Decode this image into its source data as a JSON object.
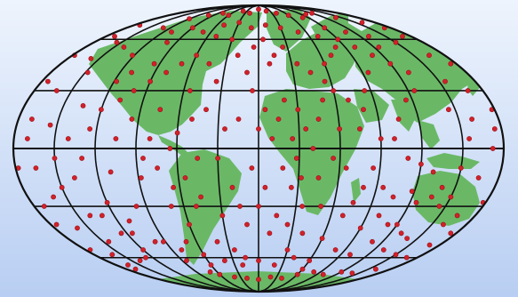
{
  "map": {
    "projection": "Mollweide",
    "colors": {
      "background_top": "#eef4fd",
      "background_bottom": "#b8cef2",
      "land": "#6ab866",
      "grid": "#111111",
      "point": "#d2212a",
      "point_edge": "#9a1018"
    },
    "graticule": {
      "parallels_deg": [
        -60,
        -30,
        0,
        30,
        60
      ],
      "meridians_deg": [
        -180,
        -150,
        -120,
        -90,
        -60,
        -30,
        0,
        30,
        60,
        90,
        120,
        150,
        180
      ]
    },
    "points": [
      [
        -170,
        62
      ],
      [
        -158,
        48
      ],
      [
        -162,
        30
      ],
      [
        -140,
        55
      ],
      [
        -148,
        40
      ],
      [
        -135,
        22
      ],
      [
        -155,
        12
      ],
      [
        -170,
        5
      ],
      [
        -165,
        -10
      ],
      [
        -150,
        -20
      ],
      [
        -172,
        -30
      ],
      [
        -160,
        -42
      ],
      [
        -145,
        -50
      ],
      [
        -175,
        -55
      ],
      [
        -165,
        -65
      ],
      [
        -140,
        -35
      ],
      [
        -130,
        -5
      ],
      [
        -125,
        10
      ],
      [
        -138,
        -15
      ],
      [
        -120,
        -28
      ],
      [
        -115,
        -45
      ],
      [
        -128,
        -60
      ],
      [
        -110,
        -12
      ],
      [
        -105,
        5
      ],
      [
        -118,
        35
      ],
      [
        -122,
        50
      ],
      [
        -100,
        58
      ],
      [
        -95,
        45
      ],
      [
        -108,
        25
      ],
      [
        -98,
        -30
      ],
      [
        -92,
        -50
      ],
      [
        -88,
        -15
      ],
      [
        -85,
        -62
      ],
      [
        -70,
        -70
      ],
      [
        -60,
        -72
      ],
      [
        -40,
        -74
      ],
      [
        -20,
        -75
      ],
      [
        0,
        -76
      ],
      [
        20,
        -74
      ],
      [
        40,
        -75
      ],
      [
        60,
        -72
      ],
      [
        80,
        -70
      ],
      [
        100,
        -72
      ],
      [
        120,
        -70
      ],
      [
        140,
        -71
      ],
      [
        160,
        -68
      ],
      [
        -120,
        75
      ],
      [
        -100,
        78
      ],
      [
        -80,
        80
      ],
      [
        -60,
        78
      ],
      [
        -40,
        82
      ],
      [
        -20,
        80
      ],
      [
        0,
        84
      ],
      [
        20,
        82
      ],
      [
        40,
        80
      ],
      [
        60,
        78
      ],
      [
        80,
        76
      ],
      [
        100,
        79
      ],
      [
        120,
        80
      ],
      [
        140,
        76
      ],
      [
        160,
        72
      ],
      [
        170,
        62
      ],
      [
        175,
        45
      ],
      [
        168,
        30
      ],
      [
        160,
        15
      ],
      [
        172,
        0
      ],
      [
        165,
        -15
      ],
      [
        178,
        -28
      ],
      [
        160,
        -40
      ],
      [
        170,
        -52
      ],
      [
        150,
        -58
      ],
      [
        140,
        -48
      ],
      [
        130,
        -55
      ],
      [
        110,
        -50
      ],
      [
        100,
        -35
      ],
      [
        90,
        -42
      ],
      [
        80,
        -20
      ],
      [
        70,
        -35
      ],
      [
        60,
        -48
      ],
      [
        50,
        -30
      ],
      [
        40,
        -45
      ],
      [
        30,
        -55
      ],
      [
        10,
        -45
      ],
      [
        0,
        -30
      ],
      [
        -10,
        -40
      ],
      [
        -20,
        -20
      ],
      [
        -30,
        -35
      ],
      [
        -40,
        -50
      ],
      [
        -25,
        -55
      ],
      [
        -15,
        -60
      ],
      [
        -30,
        -5
      ],
      [
        -25,
        10
      ],
      [
        -40,
        20
      ],
      [
        -35,
        35
      ],
      [
        -45,
        45
      ],
      [
        -20,
        50
      ],
      [
        -30,
        60
      ],
      [
        -50,
        62
      ],
      [
        -60,
        50
      ],
      [
        -55,
        30
      ],
      [
        -50,
        15
      ],
      [
        -60,
        8
      ],
      [
        -45,
        -5
      ],
      [
        10,
        5
      ],
      [
        0,
        10
      ],
      [
        5,
        20
      ],
      [
        15,
        15
      ],
      [
        20,
        25
      ],
      [
        30,
        20
      ],
      [
        35,
        10
      ],
      [
        25,
        5
      ],
      [
        28,
        -5
      ],
      [
        32,
        -15
      ],
      [
        25,
        -20
      ],
      [
        18,
        -10
      ],
      [
        40,
        0
      ],
      [
        45,
        15
      ],
      [
        50,
        25
      ],
      [
        55,
        35
      ],
      [
        60,
        45
      ],
      [
        70,
        50
      ],
      [
        80,
        55
      ],
      [
        90,
        60
      ],
      [
        100,
        55
      ],
      [
        110,
        50
      ],
      [
        120,
        45
      ],
      [
        130,
        40
      ],
      [
        125,
        30
      ],
      [
        115,
        25
      ],
      [
        105,
        15
      ],
      [
        100,
        5
      ],
      [
        110,
        -5
      ],
      [
        120,
        -8
      ],
      [
        130,
        -12
      ],
      [
        140,
        -20
      ],
      [
        150,
        -25
      ],
      [
        145,
        -30
      ],
      [
        135,
        -25
      ],
      [
        125,
        -28
      ],
      [
        118,
        -22
      ],
      [
        70,
        25
      ],
      [
        80,
        20
      ],
      [
        75,
        10
      ],
      [
        85,
        30
      ],
      [
        95,
        40
      ],
      [
        60,
        30
      ],
      [
        45,
        40
      ],
      [
        35,
        45
      ],
      [
        25,
        55
      ],
      [
        15,
        50
      ],
      [
        10,
        45
      ],
      [
        5,
        60
      ],
      [
        -5,
        55
      ],
      [
        -10,
        40
      ],
      [
        -5,
        30
      ],
      [
        -15,
        15
      ],
      [
        -70,
        45
      ],
      [
        -80,
        40
      ],
      [
        -90,
        35
      ],
      [
        -100,
        30
      ],
      [
        -110,
        40
      ],
      [
        -75,
        -10
      ],
      [
        -65,
        -20
      ],
      [
        -55,
        -15
      ],
      [
        -70,
        -30
      ],
      [
        -60,
        -40
      ],
      [
        -70,
        -50
      ],
      [
        -50,
        -30
      ],
      [
        -45,
        -25
      ],
      [
        -65,
        0
      ],
      [
        -80,
        5
      ],
      [
        -85,
        -5
      ],
      [
        -95,
        15
      ],
      [
        -75,
        20
      ],
      [
        -120,
        20
      ],
      [
        -140,
        5
      ],
      [
        -150,
        -5
      ],
      [
        -130,
        -35
      ],
      [
        -110,
        -38
      ],
      [
        -160,
        -25
      ],
      [
        -170,
        15
      ],
      [
        -175,
        35
      ],
      [
        -155,
        58
      ],
      [
        -130,
        68
      ],
      [
        -110,
        65
      ],
      [
        -90,
        68
      ],
      [
        -70,
        65
      ],
      [
        -50,
        70
      ],
      [
        -30,
        72
      ],
      [
        -10,
        68
      ],
      [
        10,
        70
      ],
      [
        30,
        68
      ],
      [
        50,
        65
      ],
      [
        70,
        62
      ],
      [
        90,
        68
      ],
      [
        110,
        65
      ],
      [
        130,
        62
      ],
      [
        150,
        58
      ],
      [
        165,
        50
      ],
      [
        155,
        35
      ],
      [
        145,
        20
      ],
      [
        155,
        5
      ],
      [
        150,
        -10
      ],
      [
        165,
        -35
      ],
      [
        175,
        -45
      ],
      [
        120,
        -40
      ],
      [
        100,
        -58
      ],
      [
        80,
        -55
      ],
      [
        60,
        -62
      ],
      [
        40,
        -60
      ],
      [
        20,
        -65
      ],
      [
        0,
        -62
      ],
      [
        -20,
        -65
      ],
      [
        -40,
        -62
      ],
      [
        -60,
        -58
      ],
      [
        -80,
        -55
      ],
      [
        -100,
        -50
      ],
      [
        -120,
        -55
      ],
      [
        -140,
        -62
      ],
      [
        -160,
        -58
      ],
      [
        -5,
        -10
      ],
      [
        5,
        -20
      ],
      [
        15,
        -35
      ],
      [
        -15,
        -30
      ],
      [
        25,
        -40
      ],
      [
        35,
        -30
      ],
      [
        45,
        -15
      ],
      [
        55,
        -5
      ],
      [
        60,
        10
      ],
      [
        65,
        -10
      ],
      [
        75,
        -28
      ],
      [
        85,
        -10
      ],
      [
        90,
        5
      ],
      [
        95,
        -20
      ],
      [
        105,
        -25
      ],
      [
        112,
        -40
      ],
      [
        130,
        -45
      ],
      [
        175,
        10
      ],
      [
        178,
        20
      ],
      [
        -178,
        -10
      ],
      [
        -178,
        50
      ],
      [
        -175,
        -40
      ],
      [
        -172,
        70
      ],
      [
        -168,
        -68
      ],
      [
        168,
        -60
      ],
      [
        172,
        68
      ],
      [
        -60,
        -65
      ],
      [
        60,
        -68
      ],
      [
        -125,
        -45
      ],
      [
        125,
        55
      ]
    ]
  }
}
